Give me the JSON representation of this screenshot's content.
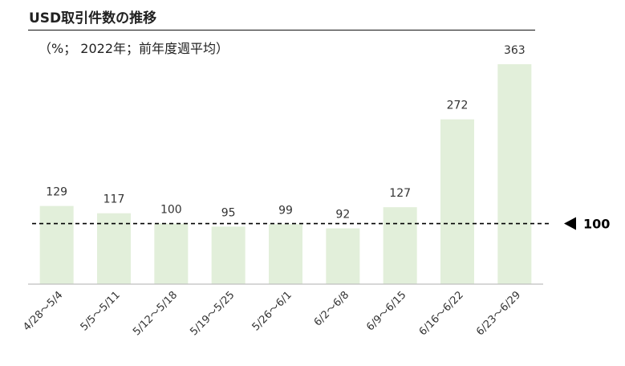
{
  "title": "USD取引件数の推移",
  "subtitle": "（%； 2022年；前年度週平均）",
  "chart_data": {
    "type": "bar",
    "categories": [
      "4/28～5/4",
      "5/5～5/11",
      "5/12～5/18",
      "5/19～5/25",
      "5/26～6/1",
      "6/2～6/8",
      "6/9～6/15",
      "6/16～6/22",
      "6/23～6/29"
    ],
    "values": [
      129,
      117,
      100,
      95,
      99,
      92,
      127,
      272,
      363
    ],
    "reference_line": {
      "value": 100,
      "label": "100",
      "style": "dashed"
    },
    "ylim": [
      0,
      380
    ],
    "grid": false,
    "bar_color": "#e2efda",
    "axis_color": "#bfbfbf"
  }
}
